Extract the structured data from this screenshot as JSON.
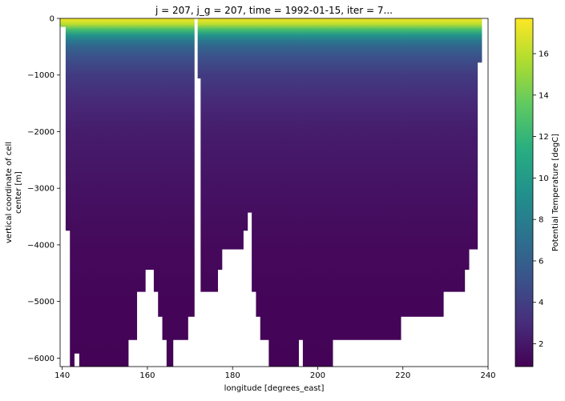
{
  "chart_data": {
    "type": "heatmap",
    "title": "j = 207, j_g = 207, time = 1992-01-15, iter = 7...",
    "xlabel": "longitude [degrees_east]",
    "ylabel_lines": [
      "vertical coordinate of cell",
      "center [m]"
    ],
    "xlim": [
      139.5,
      240
    ],
    "ylim": [
      -6150,
      0
    ],
    "x_ticks": [
      140,
      160,
      180,
      200,
      220,
      240
    ],
    "y_ticks": [
      0,
      -1000,
      -2000,
      -3000,
      -4000,
      -5000,
      -6000
    ],
    "x_tick_labels": [
      "140",
      "160",
      "180",
      "200",
      "220",
      "240"
    ],
    "y_tick_labels": [
      "0",
      "−1000",
      "−2000",
      "−3000",
      "−4000",
      "−5000",
      "−6000"
    ],
    "grid": false,
    "colormap": "viridis",
    "colorbar": {
      "label": "Potential Temperature [degC]",
      "range": [
        0.9,
        17.7
      ],
      "ticks": [
        2,
        4,
        6,
        8,
        10,
        12,
        14,
        16
      ],
      "tick_labels": [
        "2",
        "4",
        "6",
        "8",
        "10",
        "12",
        "14",
        "16"
      ]
    },
    "temperature_profile": [
      {
        "depth": 0,
        "temp": 17.5
      },
      {
        "depth": 100,
        "temp": 16.0
      },
      {
        "depth": 200,
        "temp": 12.5
      },
      {
        "depth": 300,
        "temp": 9.5
      },
      {
        "depth": 400,
        "temp": 7.5
      },
      {
        "depth": 500,
        "temp": 6.3
      },
      {
        "depth": 700,
        "temp": 5.0
      },
      {
        "depth": 1000,
        "temp": 3.8
      },
      {
        "depth": 1500,
        "temp": 2.8
      },
      {
        "depth": 2000,
        "temp": 2.2
      },
      {
        "depth": 3000,
        "temp": 1.7
      },
      {
        "depth": 4000,
        "temp": 1.3
      },
      {
        "depth": 5000,
        "temp": 1.1
      },
      {
        "depth": 6150,
        "temp": 1.0
      }
    ],
    "ocean_extent": [
      {
        "lon_start": 139.6,
        "lon_end": 140.8,
        "depth": 150
      },
      {
        "lon_start": 140.8,
        "lon_end": 141.8,
        "depth": 3750
      },
      {
        "lon_start": 141.8,
        "lon_end": 142.8,
        "depth": 6150
      },
      {
        "lon_start": 142.8,
        "lon_end": 144.0,
        "depth": 5920
      },
      {
        "lon_start": 144.0,
        "lon_end": 155.5,
        "depth": 6150
      },
      {
        "lon_start": 155.5,
        "lon_end": 157.5,
        "depth": 5680
      },
      {
        "lon_start": 157.5,
        "lon_end": 159.5,
        "depth": 4830
      },
      {
        "lon_start": 159.5,
        "lon_end": 161.5,
        "depth": 4440
      },
      {
        "lon_start": 161.5,
        "lon_end": 162.5,
        "depth": 4830
      },
      {
        "lon_start": 162.5,
        "lon_end": 163.5,
        "depth": 5270
      },
      {
        "lon_start": 163.5,
        "lon_end": 164.5,
        "depth": 5680
      },
      {
        "lon_start": 164.5,
        "lon_end": 166.0,
        "depth": 6150
      },
      {
        "lon_start": 166.0,
        "lon_end": 169.5,
        "depth": 5680
      },
      {
        "lon_start": 169.5,
        "lon_end": 171.0,
        "depth": 5270
      },
      {
        "lon_start": 171.0,
        "lon_end": 171.8,
        "depth": 0
      },
      {
        "lon_start": 171.8,
        "lon_end": 172.5,
        "depth": 1060
      },
      {
        "lon_start": 172.5,
        "lon_end": 176.5,
        "depth": 4830
      },
      {
        "lon_start": 176.5,
        "lon_end": 177.5,
        "depth": 4440
      },
      {
        "lon_start": 177.5,
        "lon_end": 182.5,
        "depth": 4080
      },
      {
        "lon_start": 182.5,
        "lon_end": 183.5,
        "depth": 3750
      },
      {
        "lon_start": 183.5,
        "lon_end": 184.5,
        "depth": 3430
      },
      {
        "lon_start": 184.5,
        "lon_end": 185.5,
        "depth": 4830
      },
      {
        "lon_start": 185.5,
        "lon_end": 186.5,
        "depth": 5270
      },
      {
        "lon_start": 186.5,
        "lon_end": 188.5,
        "depth": 5680
      },
      {
        "lon_start": 188.5,
        "lon_end": 195.5,
        "depth": 6150
      },
      {
        "lon_start": 195.5,
        "lon_end": 196.5,
        "depth": 5680
      },
      {
        "lon_start": 196.5,
        "lon_end": 203.5,
        "depth": 6150
      },
      {
        "lon_start": 203.5,
        "lon_end": 219.5,
        "depth": 5680
      },
      {
        "lon_start": 219.5,
        "lon_end": 229.5,
        "depth": 5270
      },
      {
        "lon_start": 229.5,
        "lon_end": 234.5,
        "depth": 4830
      },
      {
        "lon_start": 234.5,
        "lon_end": 235.5,
        "depth": 4440
      },
      {
        "lon_start": 235.5,
        "lon_end": 237.5,
        "depth": 4080
      },
      {
        "lon_start": 237.5,
        "lon_end": 238.5,
        "depth": 780
      },
      {
        "lon_start": 238.5,
        "lon_end": 240.0,
        "depth": 0
      }
    ]
  }
}
